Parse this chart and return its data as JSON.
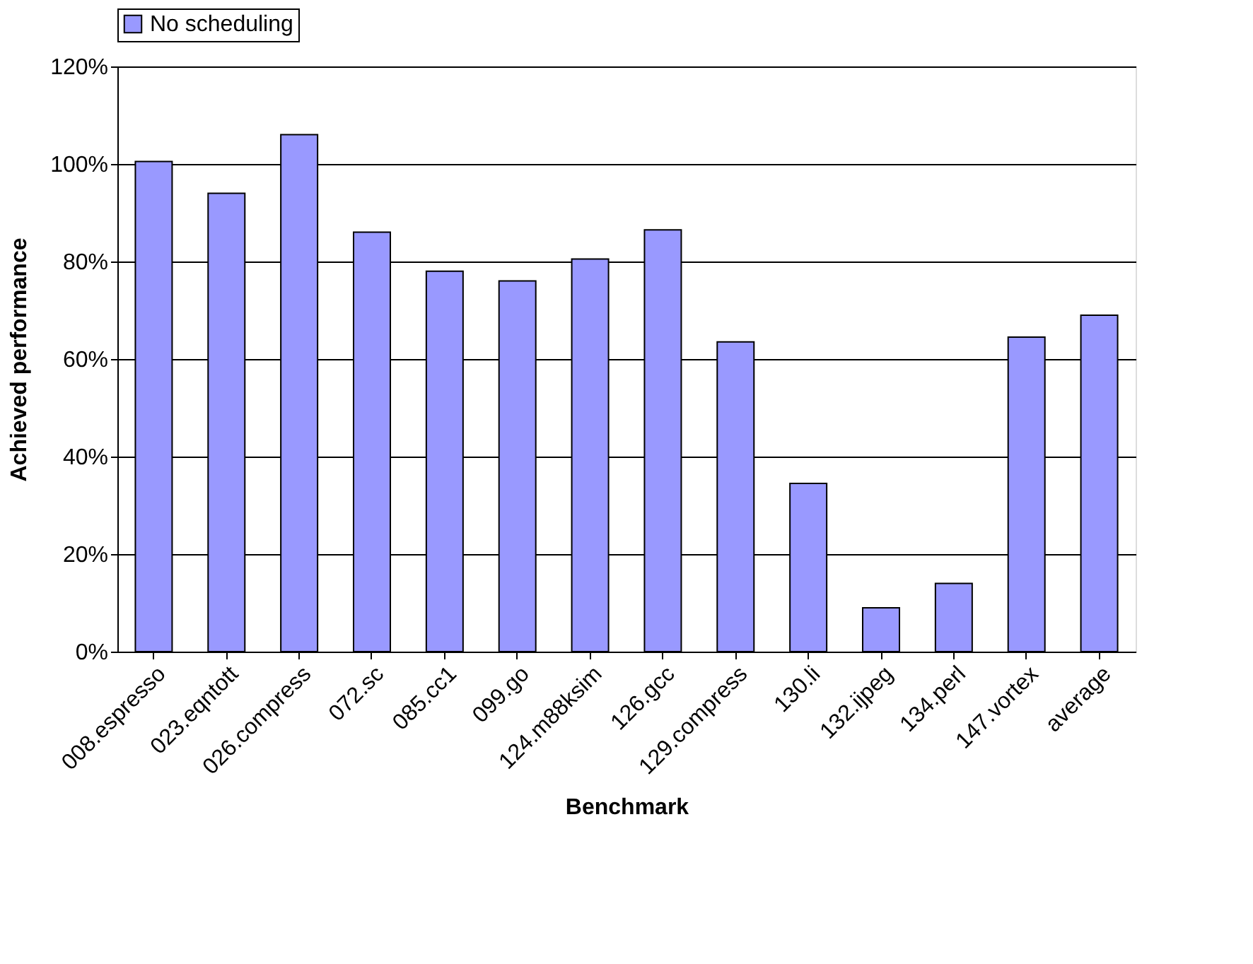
{
  "chart_data": {
    "type": "bar",
    "xlabel": "Benchmark",
    "ylabel": "Achieved performance",
    "categories": [
      "008.espresso",
      "023.eqntott",
      "026.compress",
      "072.sc",
      "085.cc1",
      "099.go",
      "124.m88ksim",
      "126.gcc",
      "129.compress",
      "130.li",
      "132.ijpeg",
      "134.perl",
      "147.vortex",
      "average"
    ],
    "series": [
      {
        "name": "No scheduling",
        "color": "#9999ff",
        "values": [
          100.5,
          94,
          106,
          86,
          78,
          76,
          80.5,
          86.5,
          63.5,
          34.5,
          9,
          14,
          64.5,
          69
        ]
      }
    ],
    "ylim": [
      0,
      120
    ],
    "yticks": [
      {
        "value": 0,
        "label": "0%"
      },
      {
        "value": 20,
        "label": "20%"
      },
      {
        "value": 40,
        "label": "40%"
      },
      {
        "value": 60,
        "label": "60%"
      },
      {
        "value": 80,
        "label": "80%"
      },
      {
        "value": 100,
        "label": "100%"
      },
      {
        "value": 120,
        "label": "120%"
      }
    ],
    "grid": "y",
    "legend": "top"
  }
}
